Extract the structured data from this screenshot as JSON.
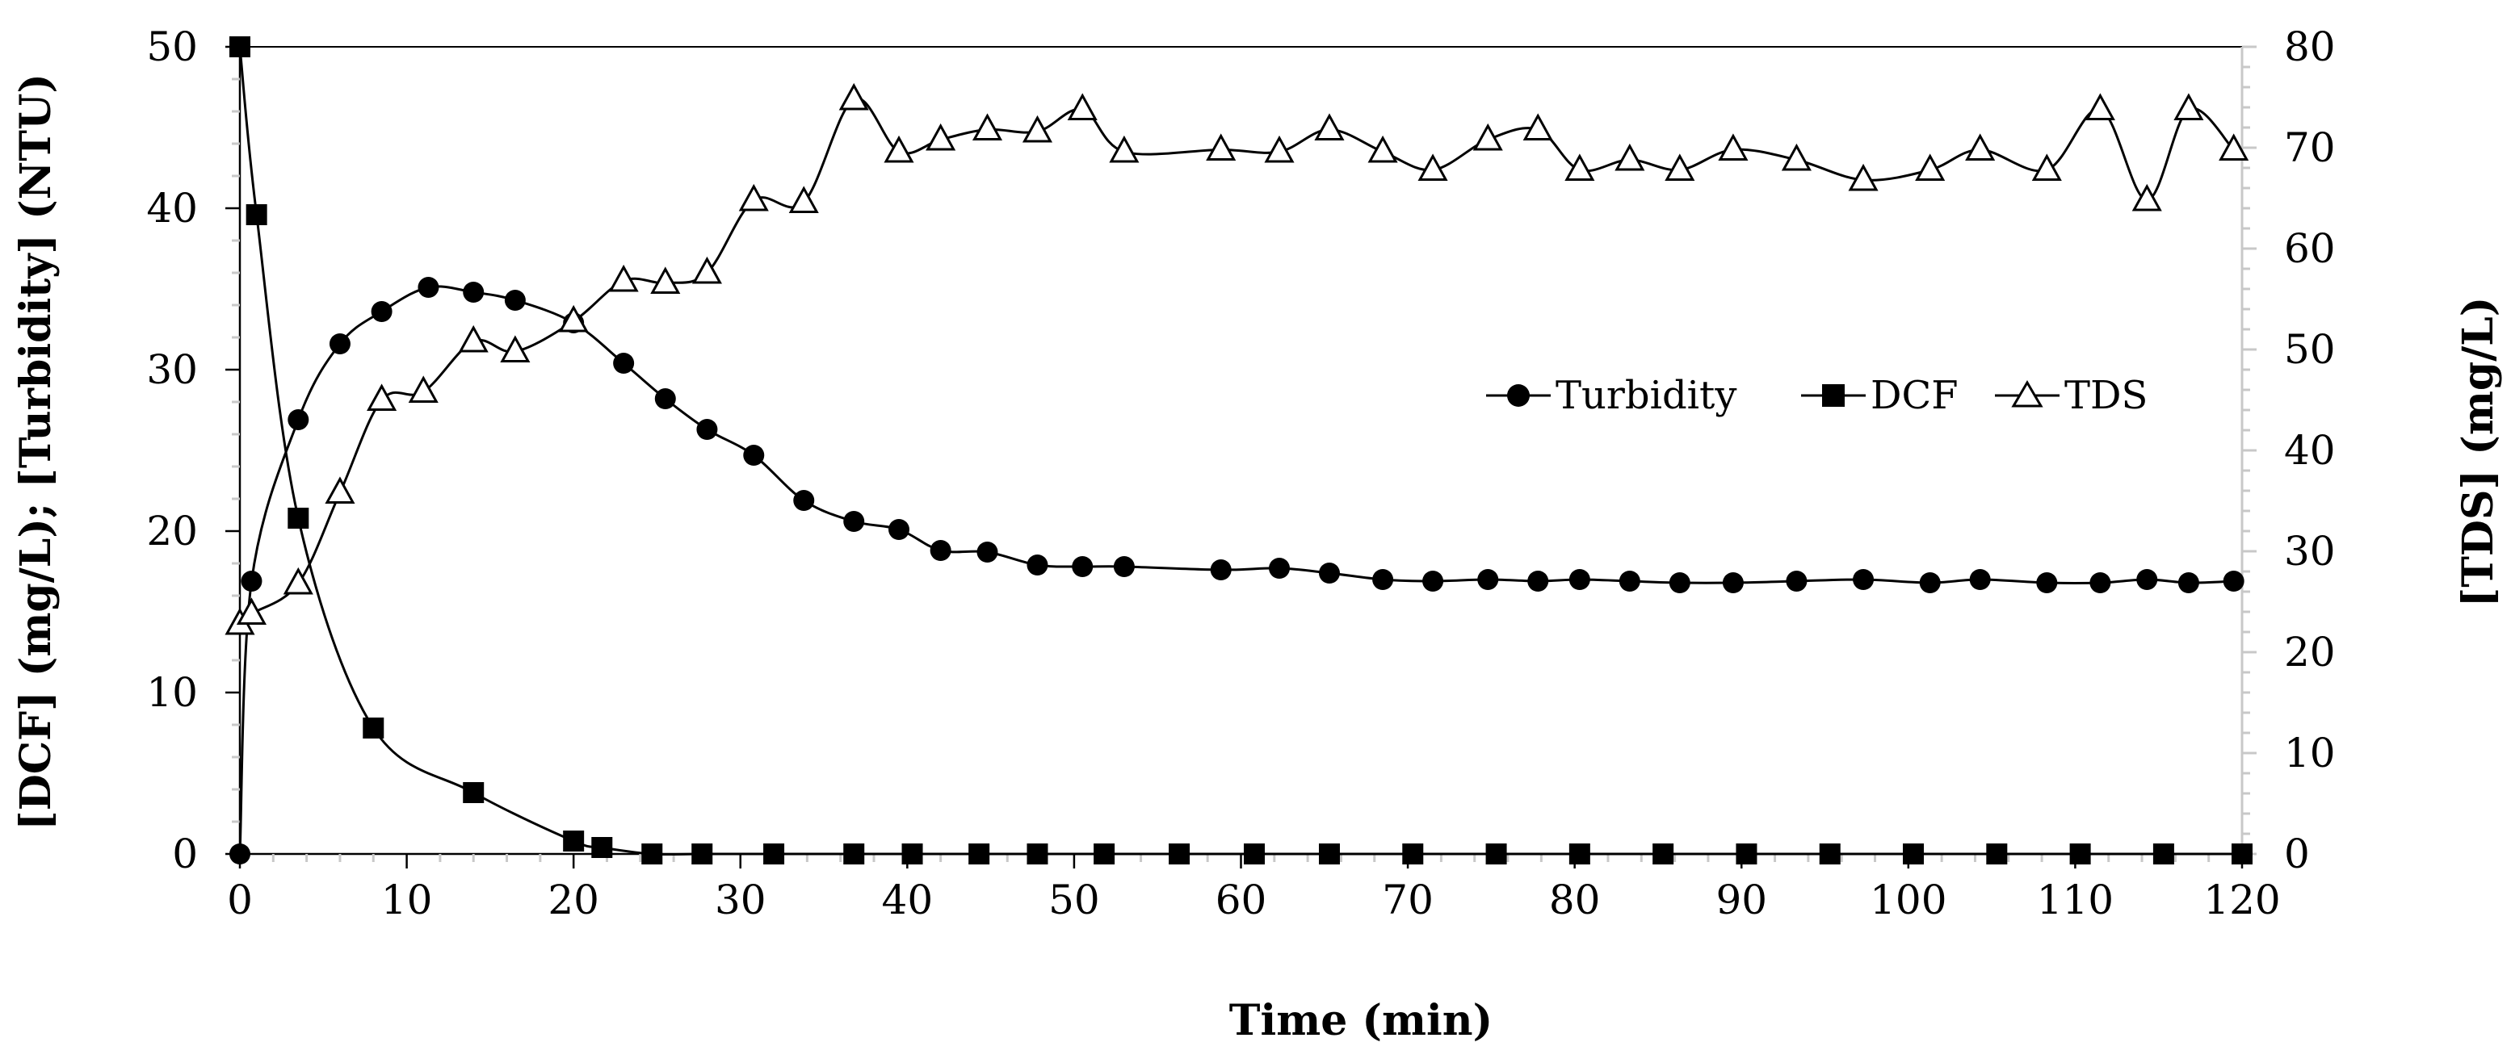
{
  "chart_data": {
    "type": "line",
    "title": "",
    "xlabel": "Time (min)",
    "ylabel": "[DCF] (mg/L); [Turbidity] (NTU)",
    "y2label": "[TDS] (mg/L)",
    "xlim": [
      0,
      120
    ],
    "ylim": [
      0,
      50
    ],
    "y2lim": [
      0,
      80
    ],
    "x_ticks": [
      "0",
      "10",
      "20",
      "30",
      "40",
      "50",
      "60",
      "70",
      "80",
      "90",
      "100",
      "110",
      "120"
    ],
    "y_ticks": [
      "0",
      "10",
      "20",
      "30",
      "40",
      "50"
    ],
    "y2_ticks": [
      "0",
      "10",
      "20",
      "30",
      "40",
      "50",
      "60",
      "70",
      "80"
    ],
    "legend_position": "middle-right",
    "series": [
      {
        "name": "Turbidity",
        "axis": "left",
        "marker": "circle",
        "x": [
          0,
          0.7,
          3.5,
          6.0,
          8.5,
          11.3,
          14.0,
          16.5,
          20.0,
          23.0,
          25.5,
          28.0,
          30.8,
          33.8,
          36.8,
          39.5,
          42.0,
          44.8,
          47.8,
          50.5,
          53.0,
          58.8,
          62.3,
          65.3,
          68.5,
          71.5,
          74.8,
          77.8,
          80.3,
          83.3,
          86.3,
          89.5,
          93.3,
          97.3,
          101.3,
          104.3,
          108.3,
          111.5,
          114.3,
          116.8,
          119.5
        ],
        "y": [
          0,
          16.9,
          26.9,
          31.6,
          33.6,
          35.1,
          34.8,
          34.3,
          32.9,
          30.4,
          28.2,
          26.3,
          24.7,
          21.9,
          20.6,
          20.1,
          18.8,
          18.7,
          17.9,
          17.8,
          17.8,
          17.6,
          17.7,
          17.4,
          17.0,
          16.9,
          17.0,
          16.9,
          17.0,
          16.9,
          16.8,
          16.8,
          16.9,
          17.0,
          16.8,
          17.0,
          16.8,
          16.8,
          17.0,
          16.8,
          16.9
        ]
      },
      {
        "name": "DCF",
        "axis": "left",
        "marker": "square",
        "x": [
          0,
          1.0,
          3.5,
          8.0,
          14.0,
          20.0,
          21.7,
          24.7,
          27.7,
          32.0,
          36.8,
          40.3,
          44.3,
          47.8,
          51.8,
          56.3,
          60.8,
          65.3,
          70.3,
          75.3,
          80.3,
          85.3,
          90.3,
          95.3,
          100.3,
          105.3,
          110.3,
          115.3,
          120.0
        ],
        "y": [
          50,
          39.6,
          20.8,
          7.8,
          3.8,
          0.8,
          0.4,
          0,
          0,
          0,
          0,
          0,
          0,
          0,
          0,
          0,
          0,
          0,
          0,
          0,
          0,
          0,
          0,
          0,
          0,
          0,
          0,
          0,
          0
        ]
      },
      {
        "name": "TDS",
        "axis": "right",
        "marker": "triangle-open",
        "x": [
          0,
          0.7,
          3.5,
          6.0,
          8.5,
          11.0,
          14.0,
          16.5,
          20.0,
          23.0,
          25.5,
          28.0,
          30.8,
          33.8,
          36.8,
          39.5,
          42.0,
          44.8,
          47.8,
          50.5,
          53.0,
          58.8,
          62.3,
          65.3,
          68.5,
          71.5,
          74.8,
          77.8,
          80.3,
          83.3,
          86.3,
          89.5,
          93.3,
          97.3,
          101.3,
          104.3,
          108.3,
          111.5,
          114.3,
          116.8,
          119.5
        ],
        "y": [
          22.8,
          23.8,
          26.8,
          35.8,
          45.0,
          45.8,
          50.8,
          49.8,
          52.8,
          56.8,
          56.6,
          57.6,
          64.8,
          64.6,
          74.8,
          69.6,
          70.8,
          71.8,
          71.6,
          73.8,
          69.6,
          69.8,
          69.6,
          71.8,
          69.6,
          67.8,
          70.8,
          71.8,
          67.8,
          68.8,
          67.8,
          69.8,
          68.8,
          66.8,
          67.8,
          69.8,
          67.8,
          73.8,
          64.8,
          73.8,
          69.8
        ]
      }
    ]
  }
}
